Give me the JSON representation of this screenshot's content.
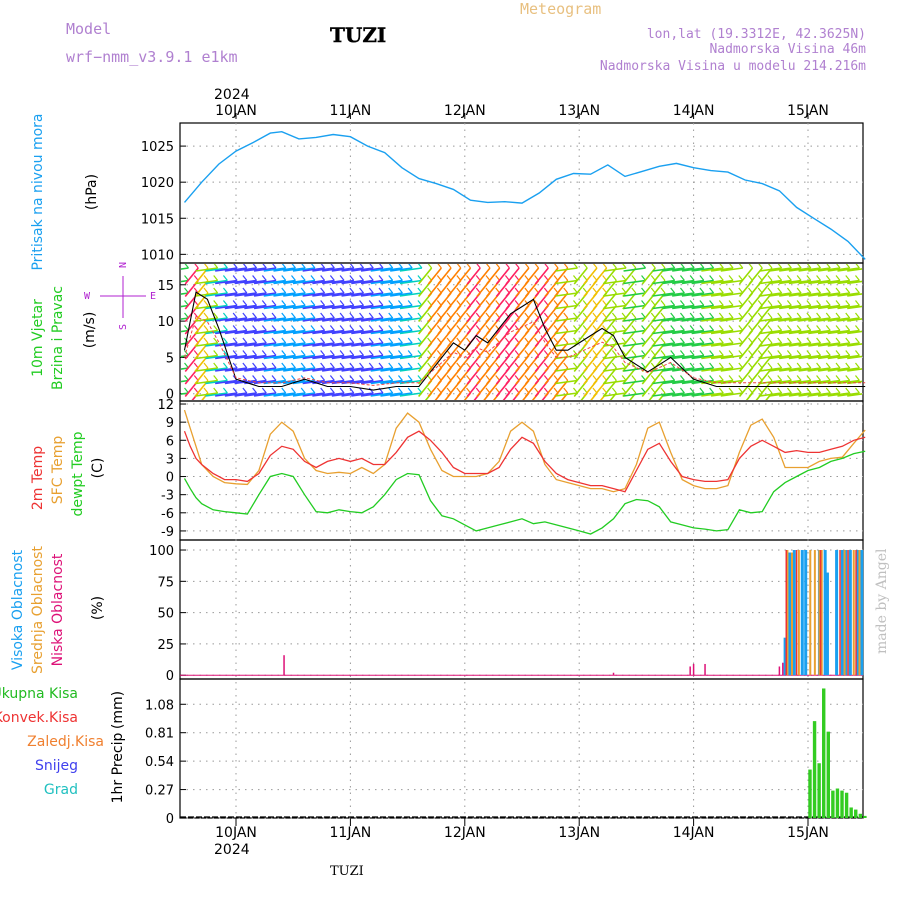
{
  "header": {
    "model_label": "Model",
    "model_name": "wrf−nmm_v3.9.1 e1km",
    "station": "TUZI",
    "meteogram": "Meteogram",
    "coords": "lon,lat (19.3312E, 42.3625N)",
    "elevation": "Nadmorska Visina 46m",
    "model_elevation": "Nadmorska Visina u modelu 214.216m"
  },
  "footer": {
    "station": "TUZI",
    "credit": "made by Angel"
  },
  "axis": {
    "year": "2024",
    "dates": [
      "10JAN",
      "11JAN",
      "12JAN",
      "13JAN",
      "14JAN",
      "15JAN"
    ],
    "compass": {
      "n": "N",
      "s": "S",
      "w": "W",
      "e": "E"
    }
  },
  "colors": {
    "pressure": "#1aa0f0",
    "temp": "#ee3333",
    "sfc": "#e8a030",
    "dew": "#22cc22",
    "high": "#1aa0f0",
    "mid": "#e8a030",
    "low": "#dd1177",
    "precip": "#33cc22",
    "title": "#b080d0",
    "meteogram": "#e8c080"
  },
  "chart_data": [
    {
      "type": "line",
      "panel": "pressure",
      "ylabel": [
        "Pritisak na nivou mora",
        "(hPa)"
      ],
      "yticks": [
        1010,
        1015,
        1020,
        1025
      ],
      "ylim": [
        1008.8,
        1028.2
      ],
      "x_unit": "days from 10JAN 00Z",
      "x": [
        -0.45,
        -0.3,
        -0.15,
        0.0,
        0.15,
        0.3,
        0.4,
        0.55,
        0.7,
        0.85,
        1.0,
        1.15,
        1.3,
        1.45,
        1.6,
        1.75,
        1.9,
        2.05,
        2.2,
        2.35,
        2.5,
        2.65,
        2.8,
        2.95,
        3.1,
        3.25,
        3.4,
        3.55,
        3.7,
        3.85,
        4.0,
        4.15,
        4.3,
        4.45,
        4.6,
        4.75,
        4.9,
        5.05,
        5.2,
        5.35,
        5.5
      ],
      "y": [
        1017.2,
        1020.0,
        1022.5,
        1024.3,
        1025.5,
        1026.8,
        1027.0,
        1026.0,
        1026.2,
        1026.6,
        1026.3,
        1025.0,
        1024.1,
        1022.0,
        1020.5,
        1019.8,
        1019.0,
        1017.5,
        1017.2,
        1017.3,
        1017.1,
        1018.5,
        1020.4,
        1021.2,
        1021.1,
        1022.4,
        1020.8,
        1021.5,
        1022.2,
        1022.6,
        1022.0,
        1021.6,
        1021.4,
        1020.3,
        1019.8,
        1018.8,
        1016.5,
        1015.0,
        1013.5,
        1011.8,
        1009.3
      ]
    },
    {
      "type": "line",
      "panel": "wind",
      "ylabel": [
        "10m Vjetar",
        "Brzina i Pravac",
        "(m/s)"
      ],
      "yticks": [
        0,
        5,
        10,
        15
      ],
      "ylim": [
        -1,
        18
      ],
      "x_unit": "days from 10JAN 00Z",
      "x": [
        -0.45,
        -0.35,
        -0.25,
        -0.15,
        0.0,
        0.2,
        0.4,
        0.6,
        0.8,
        1.0,
        1.2,
        1.4,
        1.6,
        1.7,
        1.8,
        1.9,
        2.0,
        2.1,
        2.2,
        2.3,
        2.4,
        2.5,
        2.6,
        2.7,
        2.8,
        2.9,
        3.0,
        3.1,
        3.2,
        3.3,
        3.4,
        3.5,
        3.6,
        3.7,
        3.8,
        4.0,
        4.2,
        4.4,
        4.6,
        4.8,
        5.0,
        5.2,
        5.4,
        5.5
      ],
      "speed": [
        6,
        14,
        13,
        9,
        2,
        1,
        1,
        2,
        1,
        1,
        0.5,
        1,
        1,
        3,
        5,
        7,
        6,
        8,
        7,
        9,
        11,
        12,
        13,
        9,
        6,
        6,
        7,
        8,
        9,
        8,
        5,
        4,
        3,
        4,
        5,
        2,
        1,
        1,
        1,
        1,
        1,
        1,
        1,
        1
      ],
      "barb_speed": [
        5,
        15,
        13,
        10,
        3,
        2,
        3,
        5,
        3,
        3,
        2,
        5,
        4,
        12,
        14,
        14,
        14,
        15,
        14,
        14,
        15,
        15,
        14,
        15,
        14,
        14,
        10,
        13,
        13,
        13,
        10,
        12,
        9,
        13,
        10,
        9,
        10,
        11,
        12,
        11,
        11,
        11,
        11,
        11
      ],
      "direction_label": [
        "W",
        "E",
        "N",
        "S"
      ]
    },
    {
      "type": "line",
      "panel": "temperature",
      "ylabel": [
        "2m Temp",
        "SFC Temp",
        "dewpt Temp",
        "(C)"
      ],
      "yticks": [
        -9,
        -6,
        -3,
        0,
        3,
        6,
        9,
        12
      ],
      "ylim": [
        -10.5,
        12.5
      ],
      "x_unit": "days from 10JAN 00Z",
      "x": [
        -0.45,
        -0.4,
        -0.35,
        -0.3,
        -0.2,
        -0.1,
        0.0,
        0.1,
        0.2,
        0.3,
        0.4,
        0.5,
        0.6,
        0.7,
        0.8,
        0.9,
        1.0,
        1.1,
        1.2,
        1.3,
        1.4,
        1.5,
        1.6,
        1.7,
        1.8,
        1.9,
        2.0,
        2.1,
        2.2,
        2.3,
        2.4,
        2.5,
        2.6,
        2.7,
        2.8,
        2.9,
        3.0,
        3.1,
        3.2,
        3.3,
        3.4,
        3.5,
        3.6,
        3.7,
        3.8,
        3.9,
        4.0,
        4.1,
        4.2,
        4.3,
        4.4,
        4.5,
        4.6,
        4.7,
        4.8,
        4.9,
        5.0,
        5.1,
        5.2,
        5.3,
        5.4,
        5.5
      ],
      "temp2m": [
        7.5,
        5,
        3,
        2,
        0.5,
        -0.5,
        -0.5,
        -0.8,
        0.5,
        3.5,
        5,
        4.5,
        2.5,
        1.5,
        2.5,
        3,
        2.5,
        3,
        2,
        2,
        4,
        6.5,
        7.5,
        6,
        4,
        1.5,
        0.5,
        0.5,
        0.5,
        1.5,
        4.5,
        6.5,
        5.5,
        2.5,
        0.5,
        -0.5,
        -1,
        -1.5,
        -1.5,
        -2,
        -2.5,
        1,
        4.5,
        5.5,
        2.5,
        0,
        -0.5,
        -0.8,
        -0.8,
        -0.5,
        3,
        5,
        6,
        5,
        4,
        4.3,
        4,
        4,
        4.5,
        5,
        6,
        6.5
      ],
      "sfc": [
        11,
        8,
        5,
        2,
        0,
        -1,
        -1.2,
        -1.3,
        1,
        7,
        9,
        7.5,
        3,
        1,
        0.5,
        0.7,
        0.5,
        1.5,
        0.5,
        2,
        8,
        10.5,
        9,
        4.5,
        1,
        0,
        0,
        0,
        0.5,
        2.5,
        7.5,
        9,
        7.5,
        2,
        -0.5,
        -1,
        -1.5,
        -2,
        -2,
        -2.5,
        -2,
        2,
        8,
        9,
        4,
        -0.5,
        -1.5,
        -2,
        -2,
        -1.5,
        4,
        8.5,
        9.5,
        6.5,
        1.5,
        1.5,
        1.5,
        2.5,
        3,
        3.2,
        5.5,
        7.7
      ],
      "dew": [
        -0.3,
        -2,
        -3.5,
        -4.5,
        -5.5,
        -5.8,
        -6,
        -6.2,
        -3,
        0,
        0.5,
        0,
        -3,
        -5.8,
        -6,
        -5.5,
        -5.8,
        -6,
        -5,
        -3,
        -0.5,
        0.5,
        0.3,
        -4,
        -6.5,
        -7,
        -8,
        -9,
        -8.5,
        -8,
        -7.5,
        -7,
        -7.8,
        -7.5,
        -8,
        -8.5,
        -9,
        -9.5,
        -8.5,
        -7,
        -4.5,
        -3.8,
        -4,
        -5,
        -7.5,
        -8,
        -8.5,
        -8.7,
        -9,
        -8.8,
        -5.5,
        -6,
        -5.8,
        -2.5,
        -1,
        0,
        1,
        1.5,
        2.5,
        3,
        3.8,
        4.2
      ]
    },
    {
      "type": "bar",
      "panel": "cloud",
      "ylabel": [
        "Visoka Oblacnost",
        "Srednja Oblacnost",
        "Niska Oblacnost",
        "(%)"
      ],
      "yticks": [
        0,
        25,
        50,
        75,
        100
      ],
      "ylim": [
        -3,
        108
      ],
      "x_unit": "days from 10JAN 00Z",
      "low": [
        [
          0.42,
          16
        ],
        [
          3.3,
          2
        ],
        [
          3.97,
          7
        ],
        [
          4.0,
          9
        ],
        [
          4.1,
          9
        ],
        [
          4.75,
          7
        ],
        [
          4.78,
          10
        ]
      ],
      "mid": [
        [
          4.82,
          100
        ],
        [
          4.86,
          98
        ],
        [
          4.92,
          100
        ],
        [
          5.02,
          100
        ],
        [
          5.06,
          100
        ],
        [
          5.1,
          100
        ],
        [
          5.12,
          100
        ],
        [
          5.32,
          100
        ],
        [
          5.4,
          100
        ],
        [
          5.45,
          100
        ]
      ],
      "high": [
        [
          4.8,
          30
        ],
        [
          4.84,
          98
        ],
        [
          4.88,
          100
        ],
        [
          4.95,
          100
        ],
        [
          4.98,
          100
        ],
        [
          5.1,
          100
        ],
        [
          5.15,
          100
        ],
        [
          5.17,
          82
        ],
        [
          5.25,
          100
        ],
        [
          5.3,
          100
        ],
        [
          5.33,
          100
        ],
        [
          5.37,
          100
        ],
        [
          5.43,
          100
        ],
        [
          5.47,
          100
        ]
      ],
      "low_full": [
        [
          4.81,
          100
        ],
        [
          4.9,
          100
        ],
        [
          5.11,
          100
        ],
        [
          5.28,
          100
        ],
        [
          5.35,
          100
        ],
        [
          5.42,
          100
        ]
      ]
    },
    {
      "type": "bar",
      "panel": "precip",
      "ylabel": [
        "1hr Precip",
        "(mm)"
      ],
      "legend": [
        "Ukupna Kisa",
        "Konvek.Kisa",
        "Zaledj.Kisa",
        "Snijeg",
        "Grad"
      ],
      "yticks": [
        0,
        0.27,
        0.54,
        0.81,
        1.08
      ],
      "ylim": [
        0,
        1.32
      ],
      "x_unit": "days from 10JAN 00Z",
      "x": [
        5.02,
        5.06,
        5.1,
        5.14,
        5.18,
        5.22,
        5.26,
        5.3,
        5.34,
        5.38,
        5.42,
        5.46,
        5.5
      ],
      "values": [
        0.46,
        0.92,
        0.52,
        1.23,
        0.82,
        0.26,
        0.28,
        0.26,
        0.24,
        0.1,
        0.08,
        0.04,
        0.02
      ]
    }
  ]
}
